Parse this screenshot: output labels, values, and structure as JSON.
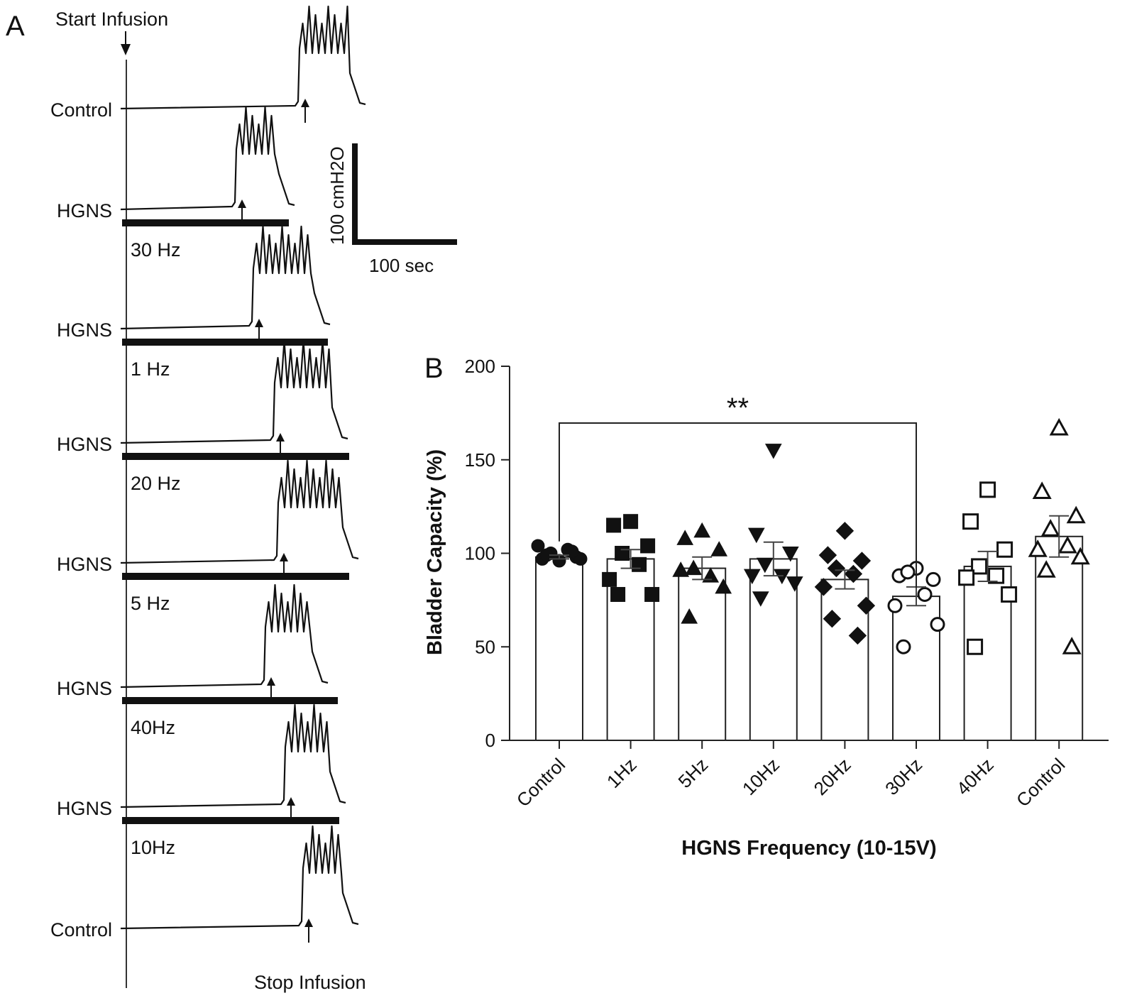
{
  "panel_a": {
    "letter": "A",
    "start_label": "Start Infusion",
    "stop_label": "Stop Infusion",
    "scale_y_label": "100 cmH2O",
    "scale_x_label": "100 sec",
    "traces": [
      {
        "label": "Control",
        "stim": ""
      },
      {
        "label": "HGNS",
        "stim": "30 Hz"
      },
      {
        "label": "HGNS",
        "stim": "1 Hz"
      },
      {
        "label": "HGNS",
        "stim": "20 Hz"
      },
      {
        "label": "HGNS",
        "stim": "5 Hz"
      },
      {
        "label": "HGNS",
        "stim": "40Hz"
      },
      {
        "label": "HGNS",
        "stim": "10Hz"
      },
      {
        "label": "Control",
        "stim": ""
      }
    ]
  },
  "chart_data": {
    "panel_letter": "B",
    "type": "bar",
    "title": "",
    "xlabel": "HGNS Frequency (10-15V)",
    "ylabel": "Bladder Capacity (%)",
    "ylim": [
      0,
      200
    ],
    "yticks": [
      0,
      50,
      100,
      150,
      200
    ],
    "significance": {
      "from": 0,
      "to": 5,
      "label": "**"
    },
    "categories": [
      "Control",
      "1Hz",
      "5Hz",
      "10Hz",
      "20Hz",
      "30Hz",
      "40Hz",
      "Control"
    ],
    "bars": [
      {
        "mean": 98,
        "sem": 1,
        "marker": "circle-filled",
        "points": [
          96,
          97,
          98,
          100,
          102,
          104,
          97,
          99,
          101
        ]
      },
      {
        "mean": 97,
        "sem": 5,
        "marker": "square-filled",
        "points": [
          117,
          115,
          104,
          100,
          94,
          86,
          78,
          78
        ]
      },
      {
        "mean": 92,
        "sem": 6,
        "marker": "triangle-filled",
        "points": [
          112,
          108,
          102,
          92,
          88,
          91,
          82,
          66
        ]
      },
      {
        "mean": 97,
        "sem": 9,
        "marker": "triangle-down-filled",
        "points": [
          155,
          110,
          100,
          94,
          88,
          88,
          84,
          76
        ]
      },
      {
        "mean": 86,
        "sem": 5,
        "marker": "diamond-filled",
        "points": [
          112,
          99,
          96,
          92,
          89,
          82,
          72,
          65,
          56
        ]
      },
      {
        "mean": 77,
        "sem": 5,
        "marker": "circle-open",
        "points": [
          92,
          88,
          86,
          90,
          78,
          72,
          62,
          50
        ]
      },
      {
        "mean": 93,
        "sem": 8,
        "marker": "square-open",
        "points": [
          134,
          117,
          102,
          93,
          88,
          87,
          78,
          50
        ]
      },
      {
        "mean": 109,
        "sem": 11,
        "marker": "triangle-open",
        "points": [
          167,
          133,
          120,
          113,
          104,
          102,
          98,
          91,
          50
        ]
      }
    ]
  }
}
